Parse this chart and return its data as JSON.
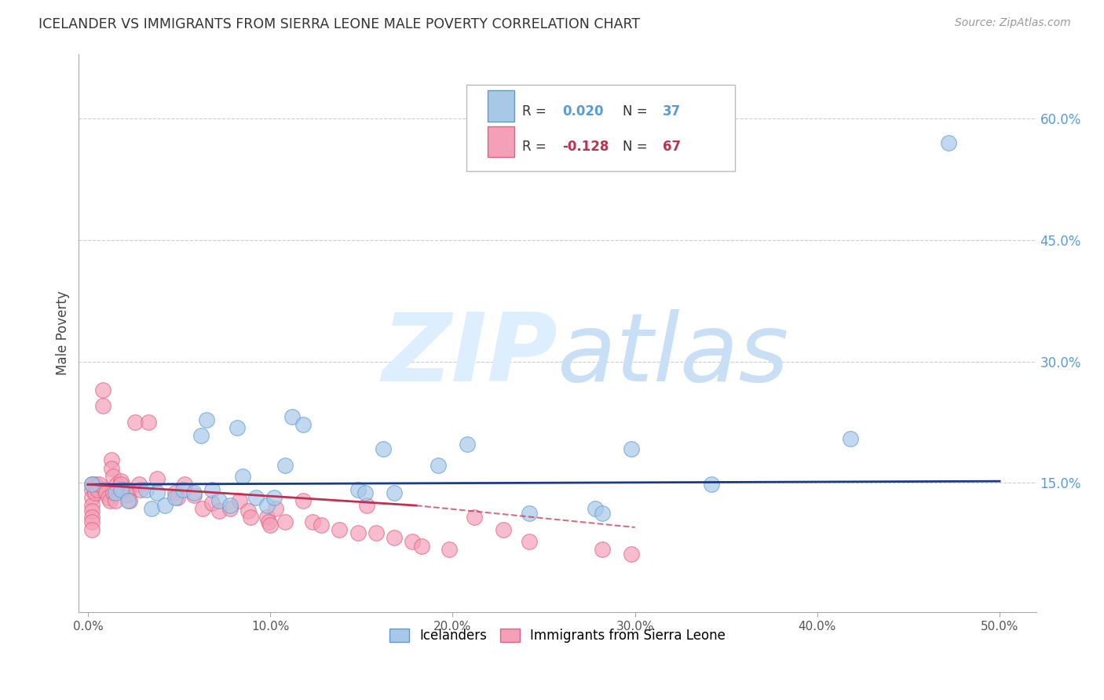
{
  "title": "ICELANDER VS IMMIGRANTS FROM SIERRA LEONE MALE POVERTY CORRELATION CHART",
  "source": "Source: ZipAtlas.com",
  "ylabel": "Male Poverty",
  "x_tick_labels": [
    "0.0%",
    "10.0%",
    "20.0%",
    "30.0%",
    "40.0%",
    "50.0%"
  ],
  "x_tick_values": [
    0.0,
    0.1,
    0.2,
    0.3,
    0.4,
    0.5
  ],
  "y_tick_labels": [
    "15.0%",
    "30.0%",
    "45.0%",
    "60.0%"
  ],
  "y_tick_values": [
    0.15,
    0.3,
    0.45,
    0.6
  ],
  "xlim": [
    -0.005,
    0.52
  ],
  "ylim": [
    -0.01,
    0.68
  ],
  "background_color": "#ffffff",
  "grid_color": "#cccccc",
  "title_color": "#333333",
  "source_color": "#999999",
  "right_tick_color": "#5b9bd5",
  "watermark_zip": "ZIP",
  "watermark_atlas": "atlas",
  "watermark_color": "#ddeeff",
  "legend1_label": "Icelanders",
  "legend2_label": "Immigrants from Sierra Leone",
  "series1_color": "#a8c8e8",
  "series2_color": "#f4a0b8",
  "series1_edge": "#5b9bd5",
  "series2_edge": "#e06080",
  "trendline1_color": "#1a3a8a",
  "trendline2_color": "#c03050",
  "R1": "0.020",
  "N1": "37",
  "R2": "-0.128",
  "N2": "67",
  "series1_x": [
    0.002,
    0.015,
    0.018,
    0.022,
    0.032,
    0.035,
    0.038,
    0.042,
    0.048,
    0.052,
    0.058,
    0.062,
    0.065,
    0.068,
    0.072,
    0.078,
    0.082,
    0.085,
    0.092,
    0.098,
    0.102,
    0.108,
    0.112,
    0.118,
    0.148,
    0.152,
    0.162,
    0.168,
    0.192,
    0.208,
    0.242,
    0.278,
    0.282,
    0.298,
    0.342,
    0.418,
    0.472
  ],
  "series1_y": [
    0.148,
    0.138,
    0.142,
    0.128,
    0.142,
    0.118,
    0.138,
    0.122,
    0.132,
    0.142,
    0.138,
    0.208,
    0.228,
    0.142,
    0.128,
    0.122,
    0.218,
    0.158,
    0.132,
    0.122,
    0.132,
    0.172,
    0.232,
    0.222,
    0.142,
    0.138,
    0.192,
    0.138,
    0.172,
    0.198,
    0.112,
    0.118,
    0.112,
    0.192,
    0.148,
    0.205,
    0.57
  ],
  "series2_x": [
    0.002,
    0.002,
    0.002,
    0.002,
    0.002,
    0.002,
    0.002,
    0.002,
    0.004,
    0.004,
    0.005,
    0.006,
    0.008,
    0.008,
    0.009,
    0.01,
    0.011,
    0.012,
    0.013,
    0.013,
    0.014,
    0.014,
    0.015,
    0.016,
    0.018,
    0.018,
    0.019,
    0.022,
    0.022,
    0.023,
    0.026,
    0.028,
    0.029,
    0.033,
    0.038,
    0.048,
    0.049,
    0.053,
    0.058,
    0.063,
    0.068,
    0.072,
    0.078,
    0.083,
    0.088,
    0.089,
    0.098,
    0.099,
    0.1,
    0.103,
    0.108,
    0.118,
    0.123,
    0.128,
    0.138,
    0.148,
    0.153,
    0.158,
    0.168,
    0.178,
    0.183,
    0.198,
    0.212,
    0.228,
    0.242,
    0.282,
    0.298
  ],
  "series2_y": [
    0.148,
    0.142,
    0.132,
    0.122,
    0.115,
    0.108,
    0.102,
    0.092,
    0.148,
    0.138,
    0.142,
    0.148,
    0.265,
    0.245,
    0.142,
    0.138,
    0.132,
    0.128,
    0.178,
    0.168,
    0.158,
    0.138,
    0.128,
    0.148,
    0.152,
    0.148,
    0.142,
    0.142,
    0.135,
    0.128,
    0.225,
    0.148,
    0.142,
    0.225,
    0.155,
    0.138,
    0.132,
    0.148,
    0.135,
    0.118,
    0.125,
    0.115,
    0.118,
    0.128,
    0.115,
    0.108,
    0.108,
    0.102,
    0.098,
    0.118,
    0.102,
    0.128,
    0.102,
    0.098,
    0.092,
    0.088,
    0.122,
    0.088,
    0.082,
    0.078,
    0.072,
    0.068,
    0.108,
    0.092,
    0.078,
    0.068,
    0.062
  ],
  "trendline1_xstart": 0.0,
  "trendline1_xend": 0.5,
  "trendline1_ystart": 0.148,
  "trendline1_yend": 0.152,
  "trendline2_xstart": 0.0,
  "trendline2_xend": 0.3,
  "trendline2_ystart": 0.148,
  "trendline2_yend": 0.095,
  "trendline2_solid_xend": 0.18,
  "trendline2_solid_yend": 0.122
}
